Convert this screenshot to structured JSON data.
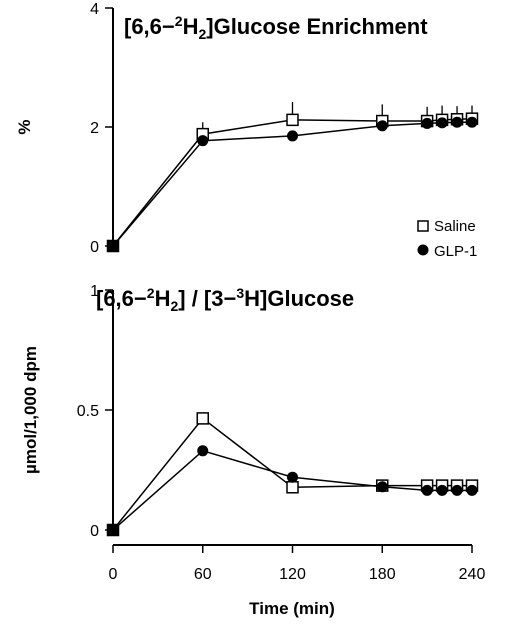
{
  "chart_data": [
    {
      "type": "line",
      "title_parts": {
        "open": "[6,6−",
        "sup1": "2",
        "h": "H",
        "sub1": "2",
        "rest": "]Glucose  Enrichment"
      },
      "ylabel": "%",
      "ylim": [
        0,
        4
      ],
      "yticks": [
        0,
        2,
        4
      ],
      "yticklabels": [
        "0",
        "2",
        "4"
      ],
      "xlim": [
        0,
        240
      ],
      "legend": {
        "placement": "right",
        "entries": [
          {
            "label": "Saline",
            "marker": "open-square"
          },
          {
            "label": "GLP-1",
            "marker": "filled-circle"
          }
        ]
      },
      "series": [
        {
          "name": "Saline",
          "marker": "open-square",
          "x": [
            0,
            60,
            120,
            180,
            210,
            220,
            230,
            240
          ],
          "y": [
            0,
            1.88,
            2.12,
            2.1,
            2.1,
            2.12,
            2.13,
            2.14
          ],
          "error_up": [
            0,
            0.2,
            0.3,
            0.28,
            0.24,
            0.24,
            0.22,
            0.22
          ]
        },
        {
          "name": "GLP-1",
          "marker": "filled-circle",
          "x": [
            0,
            60,
            120,
            180,
            210,
            220,
            230,
            240
          ],
          "y": [
            0,
            1.77,
            1.85,
            2.02,
            2.06,
            2.07,
            2.08,
            2.08
          ],
          "error_up": [
            0,
            0.08,
            0.05,
            0.05,
            0.04,
            0.04,
            0.04,
            0.04
          ]
        }
      ]
    },
    {
      "type": "line",
      "title_parts": {
        "open": "[6,6−",
        "sup1": "2",
        "h": "H",
        "sub1": "2",
        "mid": "]  /  [3−",
        "sup2": "3",
        "rest": "H]Glucose"
      },
      "ylabel": "µmol/1,000 dpm",
      "xlabel": "Time (min)",
      "ylim": [
        0,
        1
      ],
      "yticks": [
        0,
        0.5,
        1
      ],
      "yticklabels": [
        "0",
        "0.5",
        "1"
      ],
      "xlim": [
        0,
        240
      ],
      "xticks": [
        0,
        60,
        120,
        180,
        240
      ],
      "xticklabels": [
        "0",
        "60",
        "120",
        "180",
        "240"
      ],
      "series": [
        {
          "name": "Saline",
          "marker": "open-square",
          "x": [
            0,
            60,
            120,
            180,
            210,
            220,
            230,
            240
          ],
          "y": [
            0,
            0.465,
            0.178,
            0.185,
            0.185,
            0.185,
            0.185,
            0.185
          ]
        },
        {
          "name": "GLP-1",
          "marker": "filled-circle",
          "x": [
            0,
            60,
            120,
            180,
            210,
            220,
            230,
            240
          ],
          "y": [
            0,
            0.33,
            0.22,
            0.18,
            0.165,
            0.165,
            0.165,
            0.165
          ]
        }
      ]
    }
  ]
}
